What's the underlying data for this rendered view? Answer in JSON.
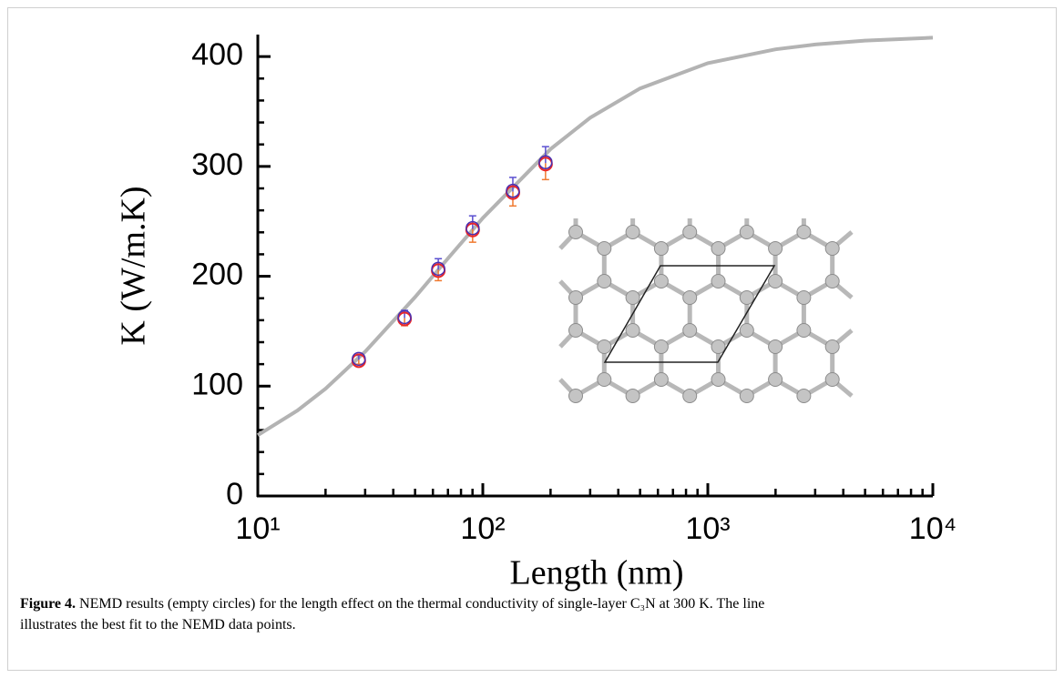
{
  "chart_data": {
    "type": "scatter",
    "xlabel": "Length (nm)",
    "ylabel": "K (W/m.K)",
    "xscale": "log",
    "xlim": [
      10,
      10000
    ],
    "ylim": [
      0,
      420
    ],
    "xticks": [
      {
        "value": 10,
        "label": "10¹"
      },
      {
        "value": 100,
        "label": "10²"
      },
      {
        "value": 1000,
        "label": "10³"
      },
      {
        "value": 10000,
        "label": "10⁴"
      }
    ],
    "xminor_ticks": [
      20,
      30,
      40,
      50,
      60,
      70,
      80,
      90,
      200,
      300,
      400,
      500,
      600,
      700,
      800,
      900,
      2000,
      3000,
      4000,
      5000,
      6000,
      7000,
      8000,
      9000
    ],
    "yticks": [
      0,
      100,
      200,
      300,
      400
    ],
    "yminor_ticks": [
      20,
      40,
      60,
      80,
      120,
      140,
      160,
      180,
      220,
      240,
      260,
      280,
      320,
      340,
      360,
      380
    ],
    "x": [
      28.1,
      44.9,
      63.4,
      90.1,
      136,
      190
    ],
    "values": [
      124,
      162,
      206,
      243,
      277,
      303
    ],
    "errors": [
      4,
      7,
      10,
      12,
      13,
      15
    ],
    "colors": [
      "#e8262a",
      "#4a2fb0"
    ],
    "error_colors": [
      "#f07a30",
      "#5a4fd0"
    ],
    "fit": {
      "color": "#b3b3b3",
      "x": [
        10,
        15,
        20,
        30,
        50,
        70,
        100,
        200,
        300,
        500,
        1000,
        2000,
        3000,
        5000,
        10000
      ],
      "values": [
        55.3,
        77.8,
        97.7,
        131.3,
        181.0,
        216.2,
        253.0,
        315.8,
        344.3,
        371.0,
        394.0,
        406.6,
        411.0,
        414.5,
        417.2
      ]
    }
  },
  "caption": {
    "label": "Figure 4.",
    "line1": "NEMD results (empty circles) for the length effect on the thermal conductivity of single-layer C₃N at 300 K. The line",
    "line2": "illustrates the best fit to the NEMD data points."
  }
}
